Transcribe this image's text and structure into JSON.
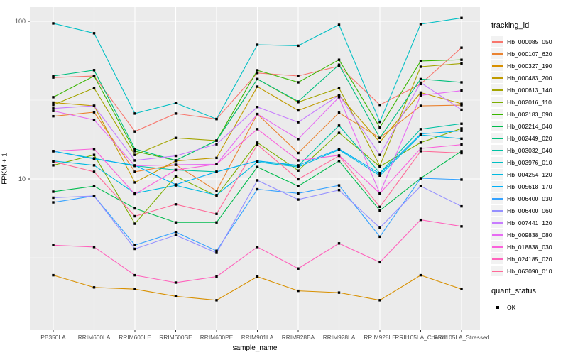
{
  "style": {
    "panel_bg": "#EBEBEB",
    "grid_color": "#FFFFFF",
    "point_color": "#000000",
    "tick_label_color": "#4D4D4D",
    "legend_key_bg": "#F2F2F2"
  },
  "chart_data": {
    "type": "line",
    "title": "",
    "xlabel": "sample_name",
    "ylabel": "FPKM + 1",
    "y_scale": "log10",
    "y_ticks": [
      10,
      100
    ],
    "y_minor": [
      3.162,
      31.62
    ],
    "ylim": [
      1.1,
      123
    ],
    "grid": true,
    "legend_position": "right",
    "point_shape": "square",
    "categories": [
      "PB350LA",
      "RRIM600LA",
      "RRIM600LE",
      "RRIM600SE",
      "RRIM600PE",
      "RRIM901LA",
      "RRIM928BA",
      "RRIM928LA",
      "RRIM928LE",
      "RRII105LA_Control",
      "RRII105LA_Stressed"
    ],
    "legend_title": "tracking_id",
    "series": [
      {
        "name": "Hb_000085_050",
        "color": "#F8766D",
        "values": [
          44,
          45,
          20,
          26,
          24,
          47,
          45,
          52,
          29.5,
          40,
          68
        ]
      },
      {
        "name": "Hb_000107_620",
        "color": "#EA8331",
        "values": [
          25,
          26.5,
          11.1,
          12.3,
          8.4,
          25.8,
          14.6,
          26.3,
          18.2,
          29.1,
          29.4
        ]
      },
      {
        "name": "Hb_000327_190",
        "color": "#D89000",
        "values": [
          2.45,
          2.05,
          2.0,
          1.8,
          1.7,
          2.4,
          1.95,
          1.9,
          1.7,
          2.45,
          2.0
        ]
      },
      {
        "name": "Hb_000483_200",
        "color": "#C09B00",
        "values": [
          30.5,
          29.1,
          9.5,
          13.0,
          13.6,
          38.5,
          27.2,
          34,
          17.1,
          35.3,
          30
        ]
      },
      {
        "name": "Hb_000613_140",
        "color": "#A3A500",
        "values": [
          29.5,
          37.7,
          14.2,
          18.2,
          17.5,
          43,
          30.7,
          37.7,
          12.1,
          51.5,
          54
        ]
      },
      {
        "name": "Hb_002016_110",
        "color": "#7CAE00",
        "values": [
          12.2,
          14.2,
          5.2,
          10.4,
          7.8,
          17.0,
          11.3,
          19.6,
          12.0,
          17.0,
          20.9
        ]
      },
      {
        "name": "Hb_002183_090",
        "color": "#39B600",
        "values": [
          33,
          45,
          15.0,
          13.1,
          17.5,
          48.9,
          41,
          57,
          21.2,
          56,
          57
        ]
      },
      {
        "name": "Hb_002214_040",
        "color": "#00BB4E",
        "values": [
          8.3,
          9.0,
          6.5,
          5.3,
          5.3,
          11.9,
          9.0,
          13.0,
          6.3,
          10.1,
          15.0
        ]
      },
      {
        "name": "Hb_002449_020",
        "color": "#00BF7D",
        "values": [
          45,
          49,
          15.5,
          13.1,
          17.5,
          43,
          31,
          53,
          18.2,
          43,
          41
        ]
      },
      {
        "name": "Hb_003032_040",
        "color": "#00C1A3",
        "values": [
          15.0,
          13.5,
          12.1,
          11.4,
          11.1,
          13.0,
          12.1,
          21.8,
          10.9,
          20.7,
          22.4
        ]
      },
      {
        "name": "Hb_003976_010",
        "color": "#00BFC4",
        "values": [
          97,
          84,
          26,
          30.3,
          24,
          71,
          70,
          95,
          23,
          96,
          105
        ]
      },
      {
        "name": "Hb_004254_120",
        "color": "#00BAE0",
        "values": [
          13.0,
          12.2,
          8.1,
          9.1,
          7.9,
          12.8,
          11.9,
          15.3,
          10.5,
          19.0,
          18.0
        ]
      },
      {
        "name": "Hb_005618_170",
        "color": "#00B0F6",
        "values": [
          15.0,
          13.4,
          12.2,
          9.2,
          11.1,
          13.0,
          12.2,
          15.5,
          10.8,
          19.3,
          20.2
        ]
      },
      {
        "name": "Hb_006400_030",
        "color": "#35A2FF",
        "values": [
          7.1,
          7.8,
          3.8,
          4.6,
          3.5,
          8.6,
          8.1,
          9.1,
          4.3,
          10.1,
          9.9
        ]
      },
      {
        "name": "Hb_006400_060",
        "color": "#9590FF",
        "values": [
          7.6,
          7.8,
          3.6,
          4.4,
          3.4,
          9.8,
          7.4,
          8.5,
          4.9,
          9.0,
          6.7
        ]
      },
      {
        "name": "Hb_007441_120",
        "color": "#C77CFF",
        "values": [
          28,
          29.1,
          13.1,
          14.0,
          16.6,
          28.6,
          22.9,
          34,
          14.2,
          40.8,
          27.5
        ]
      },
      {
        "name": "Hb_009838_080",
        "color": "#E76BF3",
        "values": [
          27,
          23.7,
          12.1,
          12.3,
          12.4,
          25.8,
          17.9,
          33,
          8.1,
          33.9,
          36.3
        ]
      },
      {
        "name": "Hb_018838_030",
        "color": "#FA62DB",
        "values": [
          15.0,
          15.5,
          8.0,
          11.4,
          12.4,
          20.7,
          13.1,
          14.1,
          8.1,
          15.6,
          16.5
        ]
      },
      {
        "name": "Hb_024185_020",
        "color": "#FF62BC",
        "values": [
          3.8,
          3.7,
          2.45,
          2.2,
          2.4,
          3.7,
          2.7,
          3.9,
          2.96,
          5.5,
          5.0
        ]
      },
      {
        "name": "Hb_063090_010",
        "color": "#FF6A98",
        "values": [
          12.9,
          11.1,
          5.8,
          6.9,
          6.0,
          16.5,
          9.95,
          14.0,
          6.65,
          15.0,
          14.6
        ]
      }
    ],
    "quant_status": {
      "title": "quant_status",
      "items": [
        {
          "label": "OK",
          "shape": "square",
          "color": "#000000"
        }
      ]
    }
  }
}
